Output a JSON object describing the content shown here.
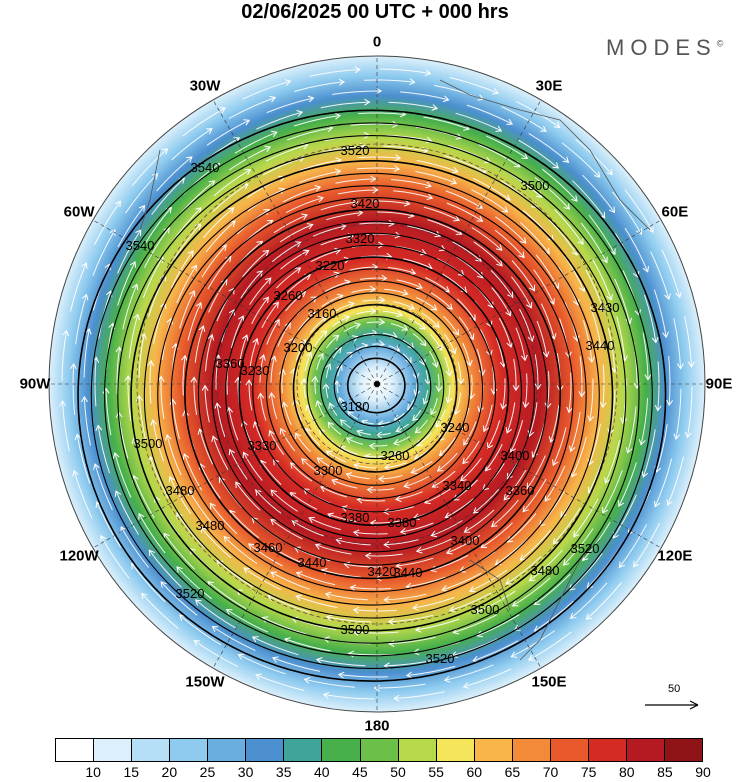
{
  "header": {
    "title": "02/06/2025  00 UTC  + 000 hrs",
    "brand": "MODES",
    "brand_mark": "©"
  },
  "map": {
    "projection": "polar-stereographic-south",
    "longitude_labels": [
      "0",
      "30E",
      "60E",
      "90E",
      "120E",
      "150E",
      "180",
      "150W",
      "120W",
      "90W",
      "60W",
      "30W"
    ],
    "height_contour_labels": [
      "3520",
      "3540",
      "3500",
      "3420",
      "3320",
      "3220",
      "3260",
      "3160",
      "3200",
      "3180",
      "3240",
      "3260",
      "3300",
      "3340",
      "3360",
      "3380",
      "3380",
      "3400",
      "3420",
      "3440",
      "3440",
      "3460",
      "3480",
      "3480",
      "3500",
      "3500",
      "3520",
      "3520",
      "3430",
      "3440",
      "3360",
      "3230",
      "3330",
      "3400",
      "3480",
      "3500",
      "3520",
      "3540"
    ],
    "vector_reference": {
      "label": "50"
    }
  },
  "colorbar": {
    "labels": [
      "10",
      "15",
      "20",
      "25",
      "30",
      "35",
      "40",
      "45",
      "50",
      "55",
      "60",
      "65",
      "70",
      "75",
      "80",
      "85",
      "90"
    ],
    "colors": [
      "#ffffff",
      "#dcf0fb",
      "#b4dff6",
      "#8ecbef",
      "#6aaee0",
      "#4b8fcf",
      "#3fa59a",
      "#47b04a",
      "#6cc04a",
      "#b6d84b",
      "#f5e55a",
      "#f7b54a",
      "#f28a3a",
      "#e85a2c",
      "#d62b25",
      "#b51a22",
      "#8e1418"
    ]
  }
}
